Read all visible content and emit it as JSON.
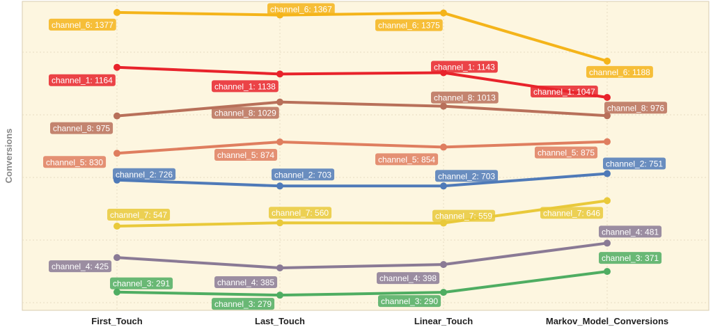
{
  "chart_data": {
    "type": "line",
    "title": "",
    "xlabel": "",
    "ylabel": "Conversions",
    "categories": [
      "First_Touch",
      "Last_Touch",
      "Linear_Touch",
      "Markov_Model_Conversions"
    ],
    "ylim": [
      220,
      1420
    ],
    "grid": true,
    "legend": "none",
    "colors": {
      "background": "#fdf6e0",
      "grid": "#e6dcc2",
      "axis_text": "#222222",
      "axis_title": "#888888"
    },
    "series": [
      {
        "name": "channel_6",
        "color": "#f4b41a",
        "values": [
          1377,
          1367,
          1375,
          1188
        ]
      },
      {
        "name": "channel_1",
        "color": "#e8232b",
        "values": [
          1164,
          1138,
          1143,
          1047
        ]
      },
      {
        "name": "channel_8",
        "color": "#b8705a",
        "values": [
          975,
          1029,
          1013,
          976
        ]
      },
      {
        "name": "channel_5",
        "color": "#df7e5f",
        "values": [
          830,
          874,
          854,
          875
        ]
      },
      {
        "name": "channel_2",
        "color": "#4f7ab8",
        "values": [
          726,
          703,
          703,
          751
        ]
      },
      {
        "name": "channel_7",
        "color": "#e9c93a",
        "values": [
          547,
          560,
          559,
          646
        ]
      },
      {
        "name": "channel_4",
        "color": "#8a7a95",
        "values": [
          425,
          385,
          398,
          481
        ]
      },
      {
        "name": "channel_3",
        "color": "#4fad62",
        "values": [
          291,
          279,
          290,
          371
        ]
      }
    ],
    "data_labels": [
      [
        "channel_6: 1377",
        "channel_6: 1367",
        "channel_6: 1375",
        "channel_6: 1188"
      ],
      [
        "channel_1: 1164",
        "channel_1: 1138",
        "channel_1: 1143",
        "channel_1: 1047"
      ],
      [
        "channel_8: 975",
        "channel_8: 1029",
        "channel_8: 1013",
        "channel_8: 976"
      ],
      [
        "channel_5: 830",
        "channel_5: 874",
        "channel_5: 854",
        "channel_5: 875"
      ],
      [
        "channel_2: 726",
        "channel_2: 703",
        "channel_2: 703",
        "channel_2: 751"
      ],
      [
        "channel_7: 547",
        "channel_7: 560",
        "channel_7: 559",
        "channel_7: 646"
      ],
      [
        "channel_4: 425",
        "channel_4: 385",
        "channel_4: 398",
        "channel_4: 481"
      ],
      [
        "channel_3: 291",
        "channel_3: 279",
        "channel_3: 290",
        "channel_3: 371"
      ]
    ]
  }
}
